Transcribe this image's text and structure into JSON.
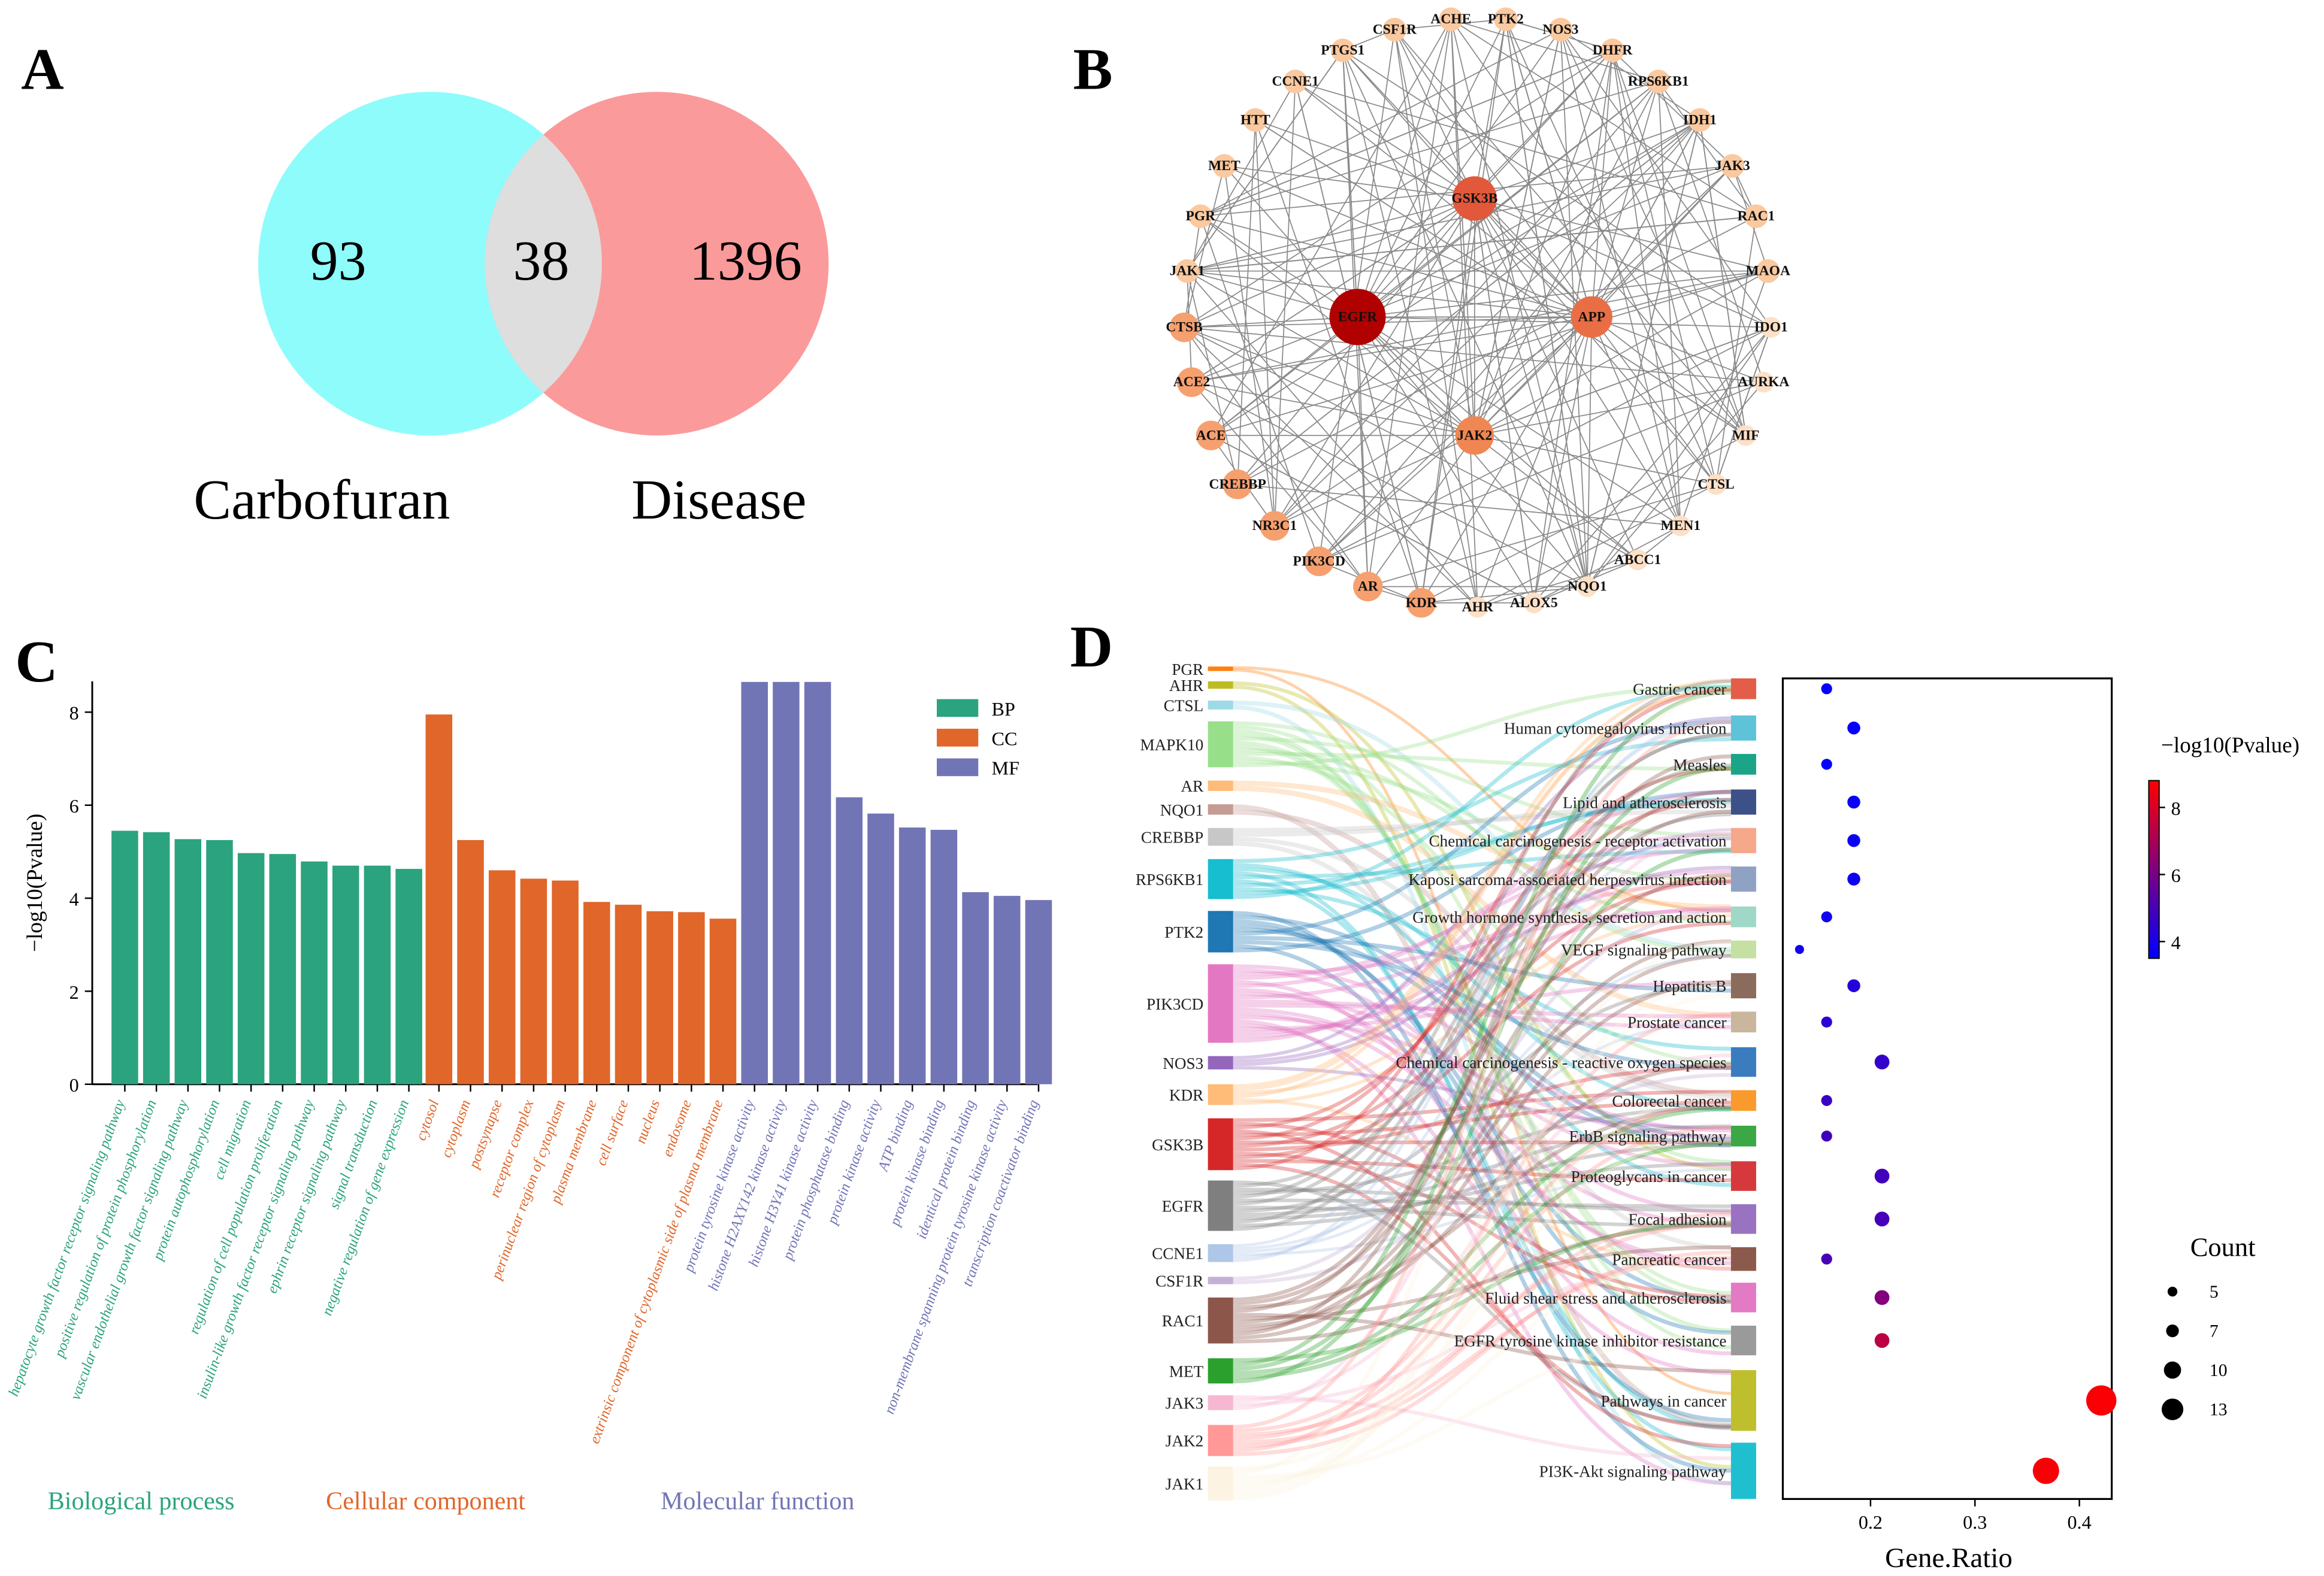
{
  "panel_labels": [
    "A",
    "B",
    "C",
    "D"
  ],
  "chart_data": [
    {
      "type": "venn",
      "panel": "A",
      "sets": [
        {
          "name": "Carbofuran",
          "only": 93,
          "color": "#8ffcfc"
        },
        {
          "name": "Disease",
          "only": 1396,
          "color": "#fb9a9a"
        }
      ],
      "intersection": 38,
      "intersection_color": "#dedede"
    },
    {
      "type": "network",
      "panel": "B",
      "node_color_low": "#fcd5b5",
      "node_color_high": "#b00000",
      "nodes": [
        "CSF1R",
        "ACHE",
        "PTK2",
        "NOS3",
        "DHFR",
        "RPS6KB1",
        "IDH1",
        "JAK3",
        "RAC1",
        "MAOA",
        "IDO1",
        "AURKA",
        "MIF",
        "CTSL",
        "MEN1",
        "ABCC1",
        "NQO1",
        "ALOX5",
        "AHR",
        "KDR",
        "AR",
        "PIK3CD",
        "NR3C1",
        "CREBBP",
        "ACE",
        "ACE2",
        "CTSB",
        "JAK1",
        "PGR",
        "MET",
        "HTT",
        "CCNE1",
        "PTGS1",
        "GSK3B",
        "EGFR",
        "APP",
        "JAK2"
      ],
      "hubs": [
        "EGFR",
        "GSK3B",
        "APP",
        "JAK2"
      ]
    },
    {
      "type": "bar",
      "panel": "C",
      "ylabel": "−log10(Pvalue)",
      "ylim": [
        0,
        8.7
      ],
      "yticks": [
        0,
        2,
        4,
        6,
        8
      ],
      "legend": [
        {
          "key": "BP",
          "color": "#2ba37e"
        },
        {
          "key": "CC",
          "color": "#e0662a"
        },
        {
          "key": "MF",
          "color": "#7275b5"
        }
      ],
      "legend_position": "top-right",
      "groups": [
        {
          "key": "BP",
          "title": "Biological process",
          "color": "#2ba37e",
          "categories": [
            "hepatocyte growth factor receptor signaling pathway",
            "positive regulation of protein phosphorylation",
            "vascular endothelial growth factor signaling pathway",
            "protein autophosphorylation",
            "cell migration",
            "regulation of cell population proliferation",
            "insulin-like growth factor receptor signaling pathway",
            "ephrin receptor signaling pathway",
            "signal transduction",
            "negative regulation of gene expression"
          ],
          "values": [
            5.45,
            5.42,
            5.27,
            5.25,
            4.97,
            4.95,
            4.79,
            4.7,
            4.7,
            4.63
          ]
        },
        {
          "key": "CC",
          "title": "Cellular component",
          "color": "#e0662a",
          "categories": [
            "cytosol",
            "cytoplasm",
            "postsynapse",
            "receptor complex",
            "perinuclear region of cytoplasm",
            "plasma membrane",
            "cell surface",
            "nucleus",
            "endosome",
            "extrinsic component of cytoplasmic side of plasma membrane"
          ],
          "values": [
            7.95,
            5.25,
            4.6,
            4.42,
            4.38,
            3.92,
            3.86,
            3.72,
            3.7,
            3.56
          ]
        },
        {
          "key": "MF",
          "title": "Molecular function",
          "color": "#7275b5",
          "categories": [
            "protein tyrosine kinase activity",
            "histone H2AXY142 kinase activity",
            "histone H3Y41 kinase activity",
            "protein phosphatase binding",
            "protein kinase activity",
            "ATP binding",
            "protein kinase binding",
            "identical protein binding",
            "non-membrane spanning protein tyrosine kinase activity",
            "transcription coactivator binding"
          ],
          "values": [
            8.65,
            8.65,
            8.65,
            6.17,
            5.82,
            5.52,
            5.47,
            4.13,
            4.05,
            3.96
          ]
        }
      ]
    },
    {
      "type": "sankey",
      "panel": "D",
      "genes": [
        {
          "name": "PGR",
          "color": "#ff7f0e",
          "weight": 1
        },
        {
          "name": "AHR",
          "color": "#bcbd22",
          "weight": 1
        },
        {
          "name": "CTSL",
          "color": "#9edae5",
          "weight": 1
        },
        {
          "name": "MAPK10",
          "color": "#98df8a",
          "weight": 6
        },
        {
          "name": "AR",
          "color": "#ffbb78",
          "weight": 1
        },
        {
          "name": "NQO1",
          "color": "#c49c94",
          "weight": 1
        },
        {
          "name": "CREBBP",
          "color": "#c7c7c7",
          "weight": 2
        },
        {
          "name": "RPS6KB1",
          "color": "#17becf",
          "weight": 5
        },
        {
          "name": "PTK2",
          "color": "#1f77b4",
          "weight": 5
        },
        {
          "name": "PIK3CD",
          "color": "#e377c2",
          "weight": 10
        },
        {
          "name": "NOS3",
          "color": "#9467bd",
          "weight": 2
        },
        {
          "name": "KDR",
          "color": "#ffbb78",
          "weight": 3
        },
        {
          "name": "GSK3B",
          "color": "#d62728",
          "weight": 7
        },
        {
          "name": "EGFR",
          "color": "#7f7f7f",
          "weight": 7
        },
        {
          "name": "CCNE1",
          "color": "#aec7e8",
          "weight": 3
        },
        {
          "name": "CSF1R",
          "color": "#c5b0d5",
          "weight": 1
        },
        {
          "name": "RAC1",
          "color": "#8c564b",
          "weight": 6
        },
        {
          "name": "MET",
          "color": "#2ca02c",
          "weight": 3
        },
        {
          "name": "JAK3",
          "color": "#f7b6d2",
          "weight": 2
        },
        {
          "name": "JAK2",
          "color": "#ff9896",
          "weight": 4
        },
        {
          "name": "JAK1",
          "color": "#fdf3e3",
          "weight": 4
        }
      ]
    },
    {
      "type": "scatter",
      "panel": "D",
      "xlabel": "Gene.Ratio",
      "xlim": [
        0.116,
        0.431
      ],
      "xticks": [
        0.2,
        0.3,
        0.4
      ],
      "colorbar": {
        "title": "−log10(Pvalue)",
        "range": [
          3.5,
          8.8
        ],
        "ticks": [
          4,
          6,
          8
        ],
        "low": "#0000ff",
        "high": "#ff0000"
      },
      "size_legend": {
        "title": "Count",
        "values": [
          5,
          7,
          10,
          13
        ]
      },
      "pathways": [
        {
          "name": "Gastric cancer",
          "color": "#e35d48",
          "ratio": 0.158,
          "count": 6,
          "logp": 3.6
        },
        {
          "name": "Human cytomegalovirus infection",
          "color": "#5ec2d8",
          "ratio": 0.184,
          "count": 7,
          "logp": 3.6
        },
        {
          "name": "Measles",
          "color": "#1ba488",
          "ratio": 0.158,
          "count": 6,
          "logp": 3.6
        },
        {
          "name": "Lipid and atherosclerosis",
          "color": "#3d5189",
          "ratio": 0.184,
          "count": 7,
          "logp": 3.7
        },
        {
          "name": "Chemical carcinogenesis - receptor activation",
          "color": "#f5a88a",
          "ratio": 0.184,
          "count": 7,
          "logp": 3.7
        },
        {
          "name": "Kaposi sarcoma-associated herpesvirus infection",
          "color": "#8fa2c4",
          "ratio": 0.184,
          "count": 7,
          "logp": 3.8
        },
        {
          "name": "Growth hormone synthesis, secretion and action",
          "color": "#9fd8c6",
          "ratio": 0.158,
          "count": 6,
          "logp": 3.8
        },
        {
          "name": "VEGF signaling pathway",
          "color": "#c5e0a3",
          "ratio": 0.132,
          "count": 5,
          "logp": 3.9
        },
        {
          "name": "Hepatitis B",
          "color": "#8b6b5b",
          "ratio": 0.184,
          "count": 7,
          "logp": 4.3
        },
        {
          "name": "Prostate cancer",
          "color": "#c9b69d",
          "ratio": 0.158,
          "count": 6,
          "logp": 4.4
        },
        {
          "name": "Chemical carcinogenesis - reactive oxygen species",
          "color": "#3b7cbf",
          "ratio": 0.211,
          "count": 8,
          "logp": 4.6
        },
        {
          "name": "Colorectal cancer",
          "color": "#fa9a2d",
          "ratio": 0.158,
          "count": 6,
          "logp": 4.7
        },
        {
          "name": "ErbB signaling pathway",
          "color": "#3ba845",
          "ratio": 0.158,
          "count": 6,
          "logp": 4.8
        },
        {
          "name": "Proteoglycans in cancer",
          "color": "#d6393b",
          "ratio": 0.211,
          "count": 8,
          "logp": 4.9
        },
        {
          "name": "Focal adhesion",
          "color": "#9a72c2",
          "ratio": 0.211,
          "count": 8,
          "logp": 4.95
        },
        {
          "name": "Pancreatic cancer",
          "color": "#8c5a4d",
          "ratio": 0.158,
          "count": 6,
          "logp": 5.0
        },
        {
          "name": "Fluid shear stress and atherosclerosis",
          "color": "#e27bc4",
          "ratio": 0.211,
          "count": 8,
          "logp": 6.2
        },
        {
          "name": "EGFR tyrosine kinase inhibitor resistance",
          "color": "#9a9a9a",
          "ratio": 0.211,
          "count": 8,
          "logp": 7.4
        },
        {
          "name": "Pathways in cancer",
          "color": "#bfbf2e",
          "ratio": 0.421,
          "count": 16,
          "logp": 8.7
        },
        {
          "name": "PI3K-Akt signaling pathway",
          "color": "#1fbfd0",
          "ratio": 0.368,
          "count": 14,
          "logp": 8.7
        }
      ]
    }
  ]
}
